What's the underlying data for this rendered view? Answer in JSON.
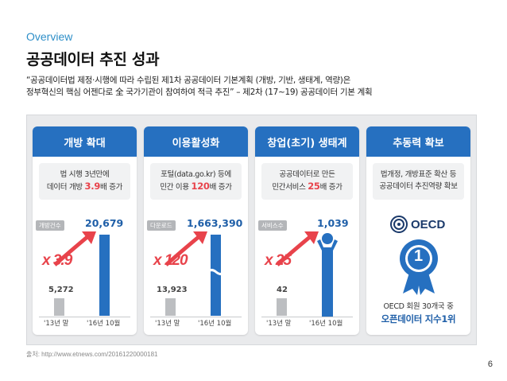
{
  "slide": {
    "section": "Overview",
    "title": "공공데이터 추진 성과",
    "desc_line1": "“공공데이터법 제정·시행에 따라 수립된 제1차 공공데이터 기본계획 (개방, 기반, 생태계, 역량)은",
    "desc_line2": "정부혁신의 핵심 어젠다로 全 국가기관이 참여하여 적극 추진” – 제2차 (17~19) 공공데이터 기본 계획",
    "source": "출처: http://www.etnews.com/20161220000181",
    "page": "6"
  },
  "cards": [
    {
      "header": "개방 확대",
      "sub_line1": "법 시행 3년만에",
      "sub_line2_pre": "데이터 개방 ",
      "sub_line2_em": "3.9",
      "sub_line2_post": "배 증가",
      "tag": "개방건수",
      "big_value": "20,679",
      "multiplier": "x 3.9",
      "small_value": "5,272",
      "tick_left": "'13년 말",
      "tick_right": "'16년 10월"
    },
    {
      "header": "이용활성화",
      "sub_line1": "포털(data.go.kr) 등에",
      "sub_line2_pre": "민간 이용 ",
      "sub_line2_em": "120",
      "sub_line2_post": "배 증가",
      "tag": "다운로드",
      "big_value": "1,663,390",
      "multiplier": "x 120",
      "small_value": "13,923",
      "tick_left": "'13년 말",
      "tick_right": "'16년 10월"
    },
    {
      "header": "창업(초기) 생태계",
      "sub_line1": "공공데이터로 만든",
      "sub_line2_pre": "민간서비스 ",
      "sub_line2_em": "25",
      "sub_line2_post": "배 증가",
      "tag": "서비스수",
      "big_value": "1,039",
      "multiplier": "x 25",
      "small_value": "42",
      "tick_left": "'13년 말",
      "tick_right": "'16년 10월"
    },
    {
      "header": "추동력 확보",
      "sub_line1": "법개정, 개방표준 확산 등",
      "sub_line2": "공공데이터 추진역량 확보",
      "logo_text": "OECD",
      "medal_number": "1",
      "caption1": "OECD 회원 30개국 중",
      "caption2": "오픈데이터 지수1위"
    }
  ],
  "colors": {
    "accent_blue": "#2670c0",
    "highlight_red": "#e8434b",
    "section_blue": "#2e8fc8"
  }
}
